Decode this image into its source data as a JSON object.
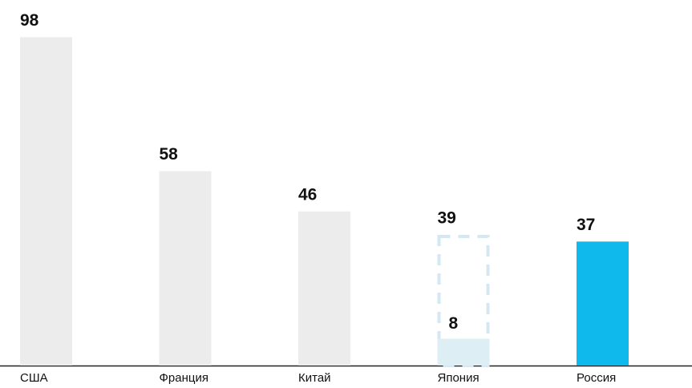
{
  "chart_data": {
    "type": "bar",
    "categories": [
      "США",
      "Франция",
      "Китай",
      "Япония",
      "Россия"
    ],
    "values": [
      98,
      58,
      46,
      39,
      37
    ],
    "colors": [
      "#ececec",
      "#ececec",
      "#ececec",
      "#d3e8f2",
      "#0fb9ec"
    ],
    "styles": [
      "solid",
      "solid",
      "solid",
      "dashed",
      "solid"
    ],
    "inner_values": [
      null,
      null,
      null,
      8,
      null
    ],
    "inner_color": "#ddeef5",
    "ylim": [
      0,
      100
    ]
  }
}
